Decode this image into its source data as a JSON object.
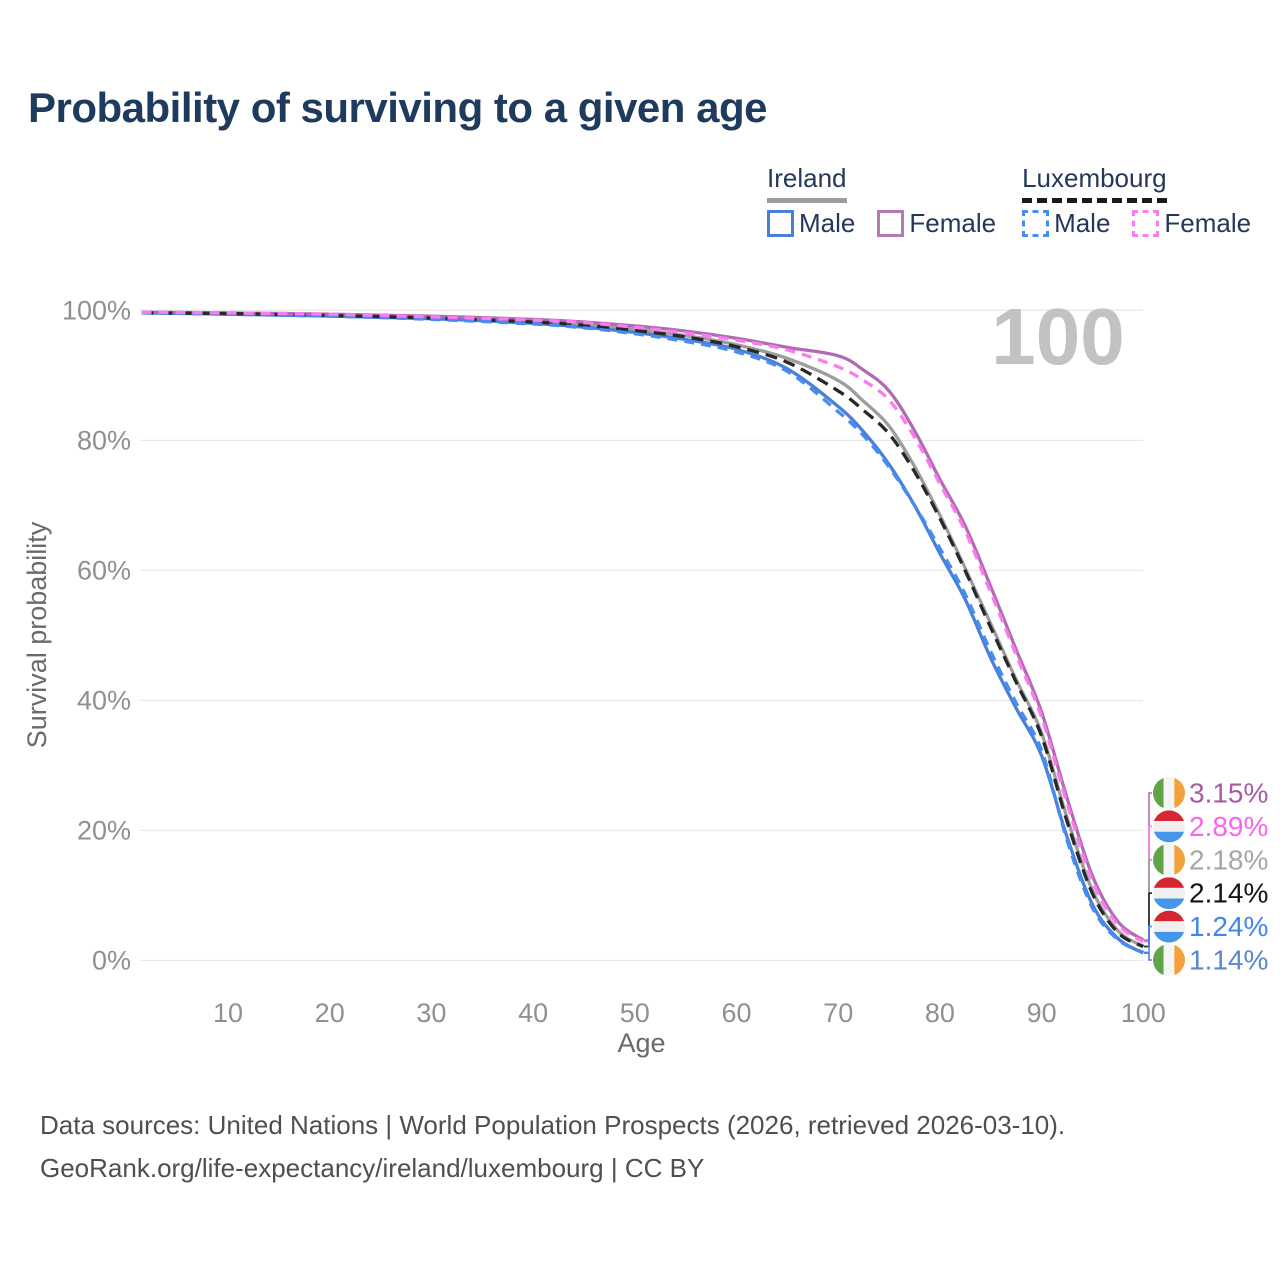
{
  "page": {
    "title": "Probability of surviving to a given age"
  },
  "legend": {
    "groups": [
      {
        "name": "Ireland",
        "underline_style": "solid",
        "underline_color": "#9e9e9e",
        "items": [
          {
            "label": "Male",
            "color": "#4a80d9",
            "dash": false
          },
          {
            "label": "Female",
            "color": "#b57ab5",
            "dash": false
          }
        ]
      },
      {
        "name": "Luxembourg",
        "underline_style": "dashed",
        "underline_color": "#1a1a1a",
        "items": [
          {
            "label": "Male",
            "color": "#478cf3",
            "dash": true
          },
          {
            "label": "Female",
            "color": "#fb7bef",
            "dash": true
          }
        ]
      }
    ]
  },
  "flags": {
    "ireland": [
      "#61a349",
      "#f5f5f5",
      "#f2a13c"
    ],
    "luxembourg": [
      "#d62631",
      "#f0f0f0",
      "#4596e8"
    ]
  },
  "chart_data": {
    "type": "line",
    "title": "Probability of surviving to a given age",
    "xlabel": "Age",
    "ylabel": "Survival probability",
    "watermark": "100",
    "x_ticks": [
      10,
      20,
      30,
      40,
      50,
      60,
      70,
      80,
      90,
      100
    ],
    "y_ticks": [
      0,
      20,
      40,
      60,
      80,
      100
    ],
    "y_tick_suffix": "%",
    "xlim": [
      1.5,
      100
    ],
    "ylim": [
      0,
      100
    ],
    "grid": "horizontal",
    "legend_position": "top-right",
    "x": [
      1.5,
      10,
      20,
      30,
      40,
      45,
      50,
      55,
      60,
      65,
      70,
      72.5,
      75,
      77.5,
      80,
      82.5,
      85,
      87.5,
      90,
      92.5,
      95,
      97.5,
      100
    ],
    "series": [
      {
        "name": "Ireland Total",
        "country": "ireland",
        "style": "solid",
        "color": "#9d9d9d",
        "values": [
          99.6,
          99.5,
          99.2,
          98.9,
          98.3,
          97.8,
          97.1,
          96.1,
          94.7,
          92.6,
          89.2,
          86.0,
          82.2,
          76.0,
          68.5,
          60.3,
          51.8,
          43.2,
          35.0,
          22.0,
          10.8,
          4.6,
          2.18
        ],
        "end_label": "2.18%",
        "label_color": "#a6a6a6"
      },
      {
        "name": "Ireland Male",
        "country": "ireland",
        "style": "solid",
        "color": "#4a80d9",
        "values": [
          99.6,
          99.4,
          99.1,
          98.7,
          98.0,
          97.4,
          96.6,
          95.5,
          94.0,
          91.0,
          85.2,
          81.3,
          76.3,
          70.0,
          62.6,
          55.5,
          46.5,
          38.8,
          31.5,
          19.0,
          8.6,
          3.4,
          1.14
        ],
        "end_label": "1.14%",
        "label_color": "#5b87cd"
      },
      {
        "name": "Ireland Female",
        "country": "ireland",
        "style": "solid",
        "color": "#b06cb3",
        "values": [
          99.7,
          99.6,
          99.4,
          99.1,
          98.6,
          98.2,
          97.6,
          96.8,
          95.7,
          94.3,
          93.0,
          90.8,
          87.6,
          81.5,
          74.0,
          66.8,
          57.5,
          47.8,
          38.2,
          25.0,
          13.0,
          6.0,
          3.15
        ],
        "end_label": "3.15%",
        "label_color": "#a85aa3"
      },
      {
        "name": "Luxembourg Total",
        "country": "luxembourg",
        "style": "dashed",
        "color": "#282828",
        "values": [
          99.6,
          99.5,
          99.2,
          98.8,
          98.2,
          97.7,
          96.9,
          95.9,
          94.4,
          92.0,
          87.6,
          84.6,
          81.0,
          75.2,
          68.0,
          59.9,
          51.2,
          42.8,
          34.5,
          21.4,
          10.3,
          4.3,
          2.14
        ],
        "end_label": "2.14%",
        "label_color": "#141414"
      },
      {
        "name": "Luxembourg Male",
        "country": "luxembourg",
        "style": "dashed",
        "color": "#478cf3",
        "values": [
          99.6,
          99.4,
          99.1,
          98.6,
          97.9,
          97.3,
          96.4,
          95.2,
          93.6,
          90.6,
          84.4,
          80.7,
          75.9,
          70.0,
          63.4,
          56.3,
          47.5,
          39.6,
          32.3,
          18.5,
          8.1,
          3.2,
          1.24
        ],
        "end_label": "1.24%",
        "label_color": "#3f86f2"
      },
      {
        "name": "Luxembourg Female",
        "country": "luxembourg",
        "style": "dashed",
        "color": "#fb7bef",
        "values": [
          99.7,
          99.6,
          99.4,
          99.0,
          98.5,
          98.1,
          97.4,
          96.5,
          95.4,
          93.9,
          91.3,
          89.2,
          86.2,
          80.5,
          73.3,
          66.0,
          56.6,
          47.0,
          37.4,
          24.2,
          12.2,
          5.5,
          2.89
        ],
        "end_label": "2.89%",
        "label_color": "#fc63ee"
      }
    ]
  },
  "footer": {
    "line1": "Data sources: United Nations | World Population Prospects (2026, retrieved 2026-03-10).",
    "line2": "GeoRank.org/life-expectancy/ireland/luxembourg | CC BY"
  }
}
